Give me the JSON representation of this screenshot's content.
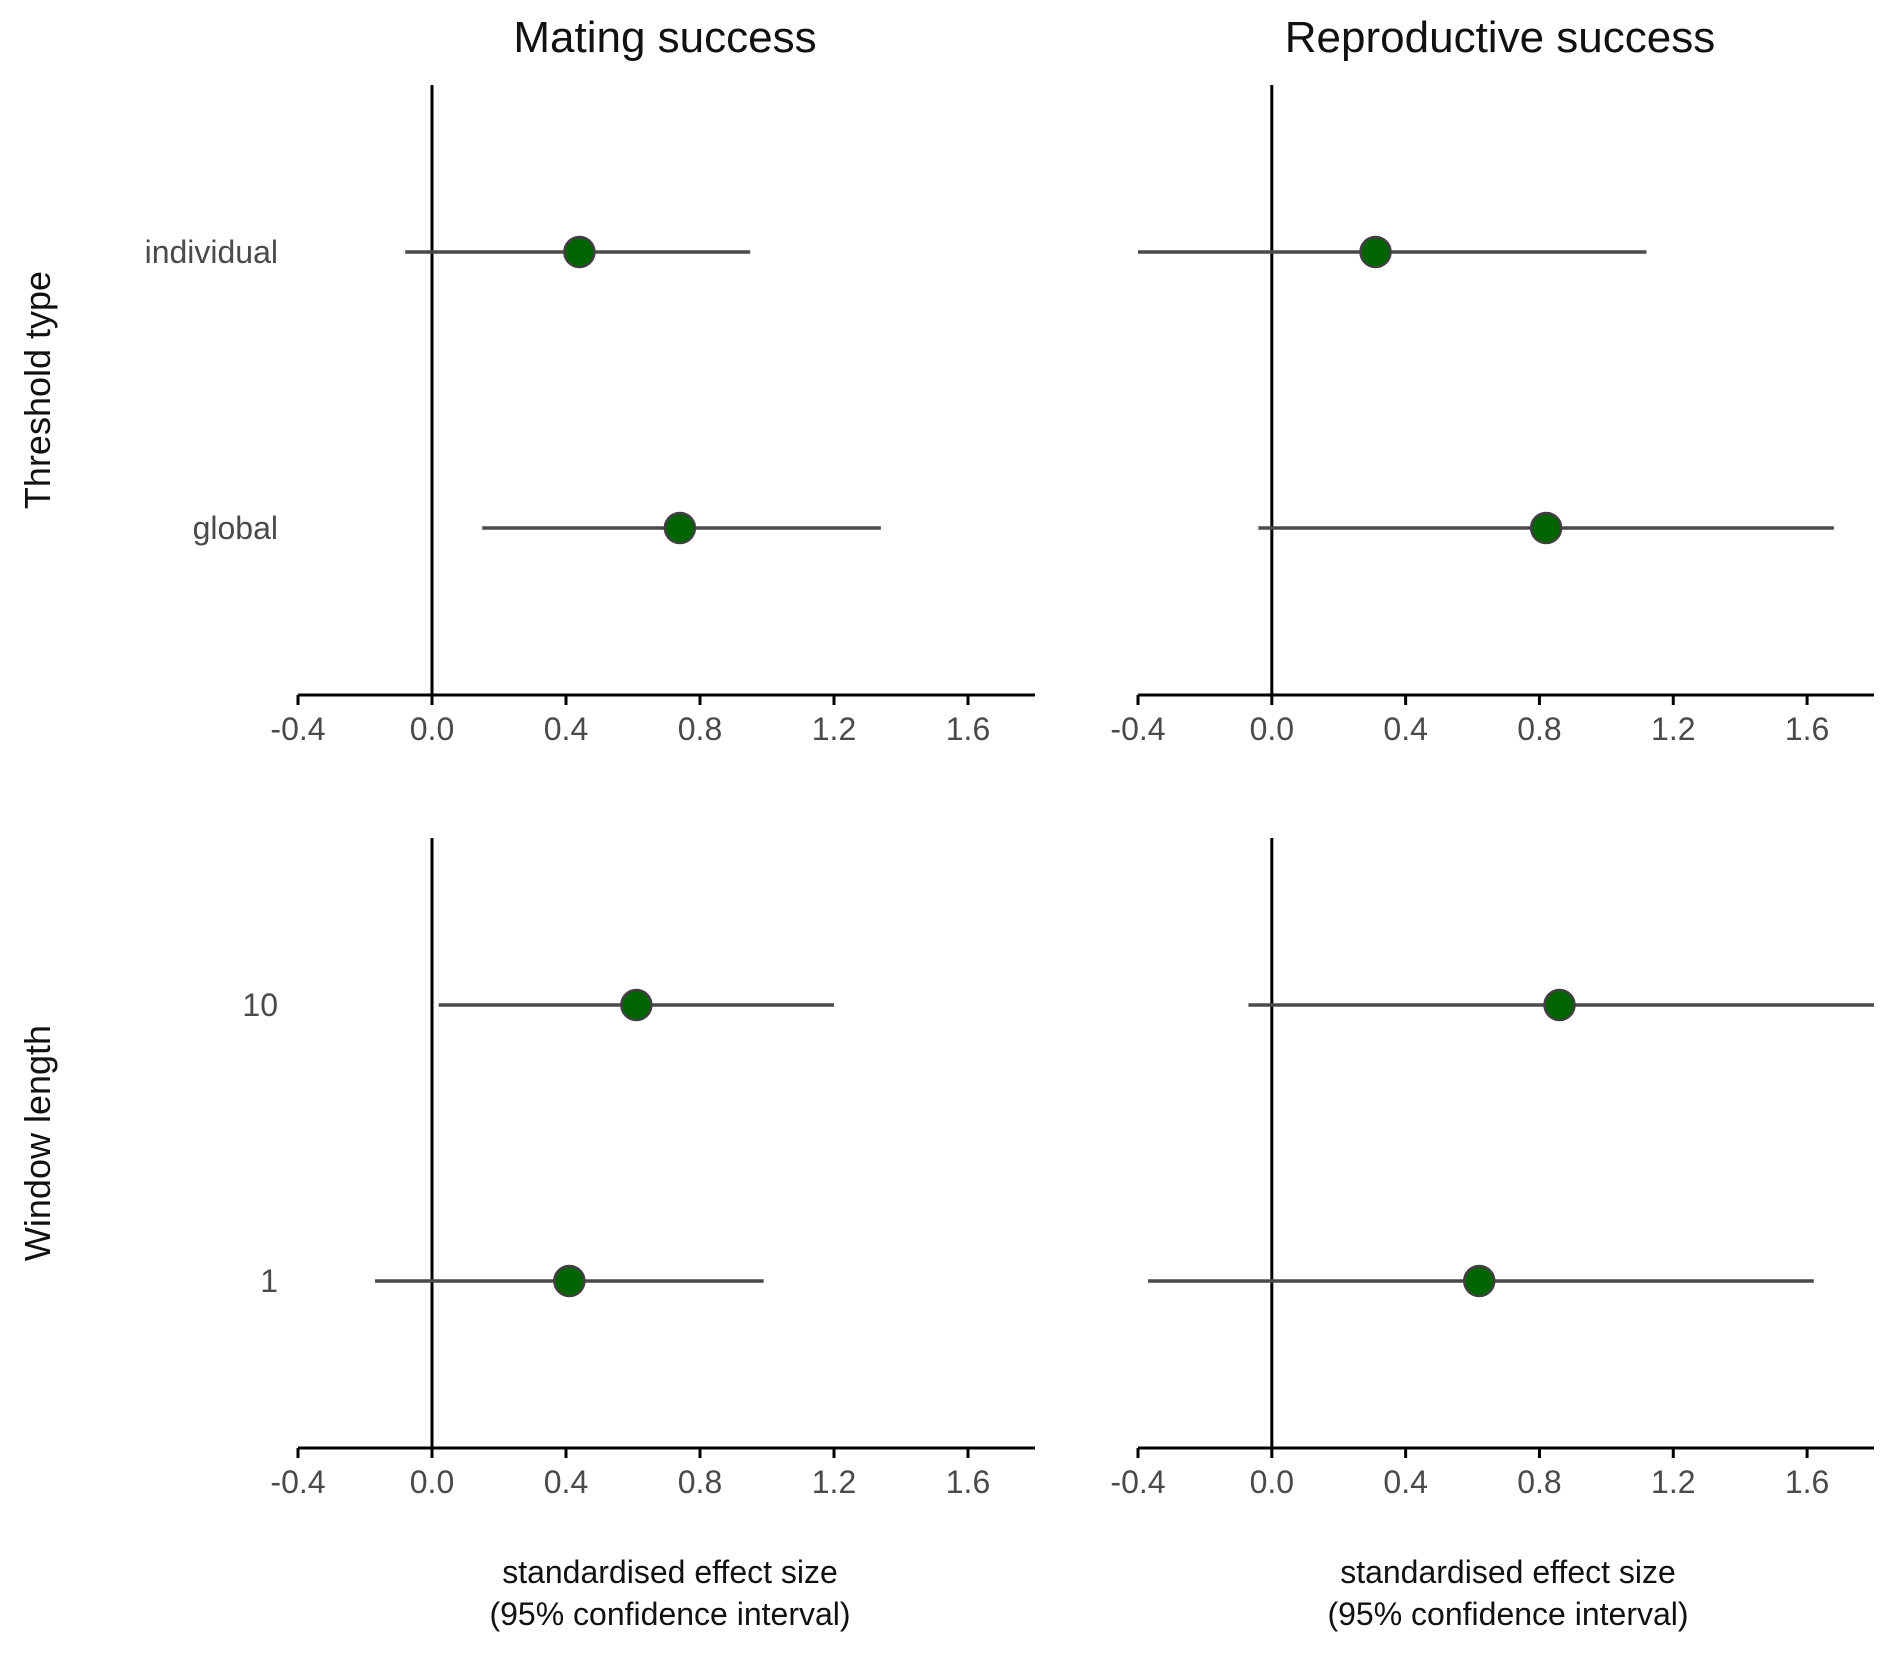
{
  "figure": {
    "column_titles": [
      "Mating success",
      "Reproductive success"
    ],
    "row_titles": [
      "Threshold type",
      "Window length"
    ],
    "x_axis_label_line1": "standardised effect size",
    "x_axis_label_line2": "(95% confidence interval)"
  },
  "chart_data": [
    {
      "type": "scatter",
      "subtype": "forest-plot",
      "column": "Mating success",
      "row": "Threshold type",
      "categories": [
        "individual",
        "global"
      ],
      "estimate": [
        0.44,
        0.74
      ],
      "ci_lower": [
        -0.08,
        0.15
      ],
      "ci_upper": [
        0.95,
        1.34
      ],
      "xlim": [
        -0.4,
        1.8
      ],
      "xticks": [
        "-0.4",
        "0.0",
        "0.4",
        "0.8",
        "1.2",
        "1.6"
      ],
      "reference_line": 0,
      "point_color": "#006400",
      "grid": false
    },
    {
      "type": "scatter",
      "subtype": "forest-plot",
      "column": "Reproductive success",
      "row": "Threshold type",
      "categories": [
        "individual",
        "global"
      ],
      "estimate": [
        0.31,
        0.82
      ],
      "ci_lower": [
        -0.4,
        -0.04
      ],
      "ci_upper": [
        1.12,
        1.68
      ],
      "xlim": [
        -0.4,
        1.8
      ],
      "xticks": [
        "-0.4",
        "0.0",
        "0.4",
        "0.8",
        "1.2",
        "1.6"
      ],
      "reference_line": 0,
      "point_color": "#006400",
      "grid": false
    },
    {
      "type": "scatter",
      "subtype": "forest-plot",
      "column": "Mating success",
      "row": "Window length",
      "categories": [
        "10",
        "1"
      ],
      "estimate": [
        0.61,
        0.41
      ],
      "ci_lower": [
        0.02,
        -0.17
      ],
      "ci_upper": [
        1.2,
        0.99
      ],
      "xlim": [
        -0.4,
        1.8
      ],
      "xticks": [
        "-0.4",
        "0.0",
        "0.4",
        "0.8",
        "1.2",
        "1.6"
      ],
      "reference_line": 0,
      "point_color": "#006400",
      "grid": false
    },
    {
      "type": "scatter",
      "subtype": "forest-plot",
      "column": "Reproductive success",
      "row": "Window length",
      "categories": [
        "10",
        "1"
      ],
      "estimate": [
        0.86,
        0.62
      ],
      "ci_lower": [
        -0.07,
        -0.37
      ],
      "ci_upper": [
        1.8,
        1.62
      ],
      "xlim": [
        -0.4,
        1.8
      ],
      "xticks": [
        "-0.4",
        "0.0",
        "0.4",
        "0.8",
        "1.2",
        "1.6"
      ],
      "reference_line": 0,
      "point_color": "#006400",
      "grid": false
    }
  ]
}
